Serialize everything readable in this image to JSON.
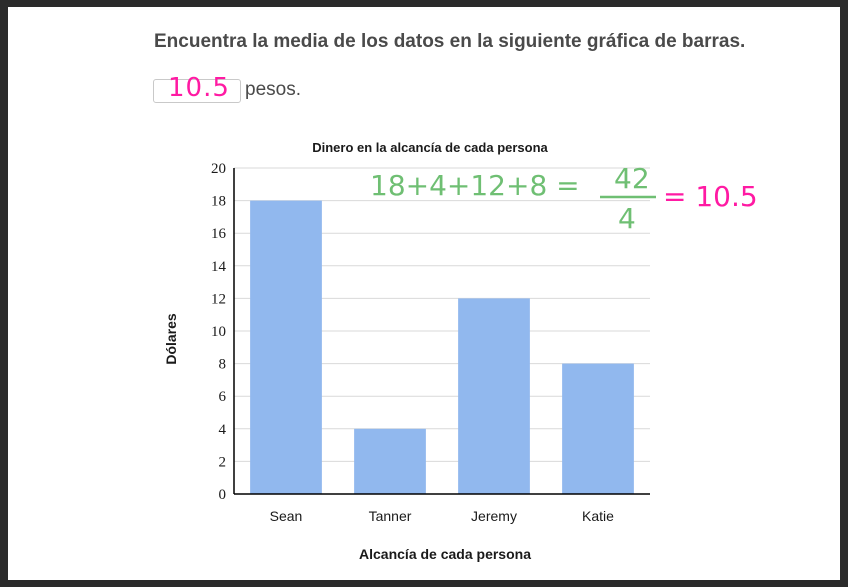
{
  "question": {
    "text": "Encuentra la media de los datos en la siguiente gráfica de barras."
  },
  "answer": {
    "value": "10.5",
    "unit": "pesos."
  },
  "annotation": {
    "sum": "18+4+12+8 =",
    "numerator": "42",
    "denominator": "4",
    "result": "= 10.5"
  },
  "colors": {
    "bar": "#91b8ee",
    "annotation_green": "#6fbf73",
    "annotation_pink": "#ff1aa3"
  },
  "chart_data": {
    "type": "bar",
    "title": "Dinero en la alcancía de cada persona",
    "xlabel": "Alcancía de cada persona",
    "ylabel": "Dólares",
    "categories": [
      "Sean",
      "Tanner",
      "Jeremy",
      "Katie"
    ],
    "values": [
      18,
      4,
      12,
      8
    ],
    "ylim": [
      0,
      20
    ],
    "yticks": [
      0,
      2,
      4,
      6,
      8,
      10,
      12,
      14,
      16,
      18,
      20
    ],
    "grid": true,
    "legend": "none"
  }
}
